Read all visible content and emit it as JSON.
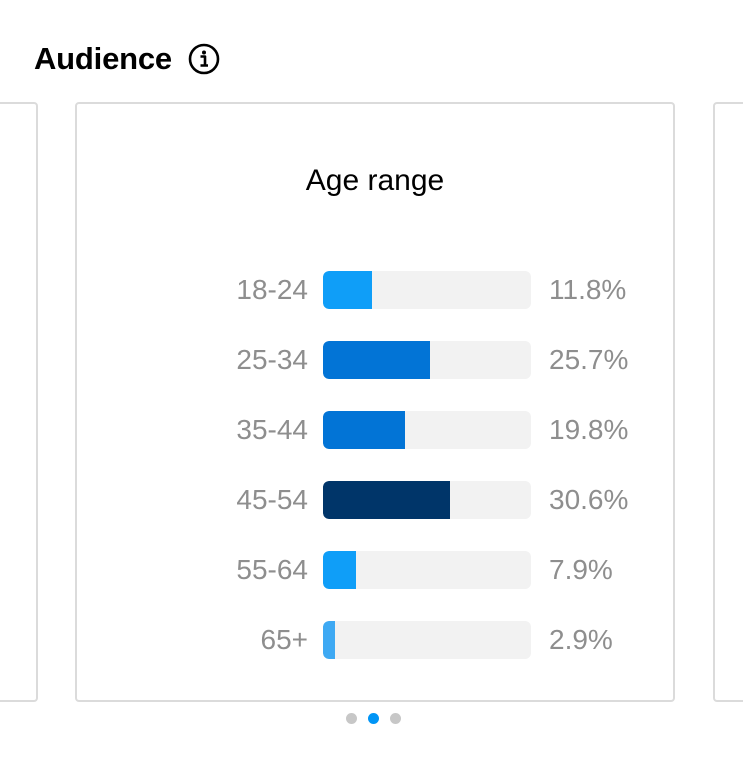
{
  "section": {
    "title": "Audience",
    "info_icon": "info-icon"
  },
  "colors": {
    "track": "#f2f2f2",
    "label": "#8e8e8e",
    "dot_inactive": "#c7c7c7",
    "dot_active": "#0095f6"
  },
  "pagination": {
    "count": 3,
    "active_index": 1
  },
  "chart_data": {
    "type": "bar",
    "orientation": "horizontal",
    "title": "Age range",
    "xlim": [
      0,
      100
    ],
    "grid": false,
    "categories": [
      "18-24",
      "25-34",
      "35-44",
      "45-54",
      "55-64",
      "65+"
    ],
    "values": [
      11.8,
      25.7,
      19.8,
      30.6,
      7.9,
      2.9
    ],
    "value_labels": [
      "11.8%",
      "25.7%",
      "19.8%",
      "30.6%",
      "7.9%",
      "2.9%"
    ],
    "bar_colors": [
      "#0f9ef8",
      "#0274d6",
      "#0274d6",
      "#003569",
      "#0f9ef8",
      "#3ea9f3"
    ]
  }
}
